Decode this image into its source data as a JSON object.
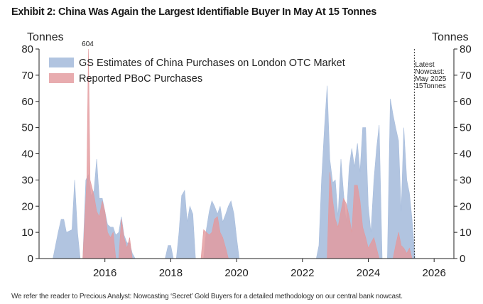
{
  "title": "Exhibit 2: China Was Again the Largest Identifiable Buyer In May At 15 Tonnes",
  "footnote": "We refer the reader to Precious Analyst: Nowcasting ‘Secret’ Gold Buyers for a detailed methodology on our central bank nowcast.",
  "chart_data": {
    "type": "area",
    "title": "",
    "ylabel_left": "Tonnes",
    "ylabel_right": "Tonnes",
    "ylim": [
      0,
      80
    ],
    "yticks": [
      0,
      10,
      20,
      30,
      40,
      50,
      60,
      70,
      80
    ],
    "xlim": [
      2014.0,
      2026.6
    ],
    "xticks": [
      2016,
      2018,
      2020,
      2022,
      2024,
      2026
    ],
    "grid": false,
    "legend_position": "top-left",
    "series": [
      {
        "name": "GS Estimates of China Purchases on London OTC Market",
        "color": "#a9bedd",
        "points": [
          [
            2014.42,
            0
          ],
          [
            2014.58,
            10
          ],
          [
            2014.67,
            15
          ],
          [
            2014.75,
            15
          ],
          [
            2014.83,
            10
          ],
          [
            2015.0,
            11
          ],
          [
            2015.08,
            30
          ],
          [
            2015.17,
            10
          ],
          [
            2015.25,
            0
          ],
          [
            2015.33,
            0
          ],
          [
            2015.42,
            30
          ],
          [
            2015.5,
            32
          ],
          [
            2015.58,
            24
          ],
          [
            2015.67,
            26
          ],
          [
            2015.75,
            38
          ],
          [
            2015.83,
            23
          ],
          [
            2015.92,
            23
          ],
          [
            2016.0,
            18
          ],
          [
            2016.08,
            13
          ],
          [
            2016.17,
            12
          ],
          [
            2016.25,
            12
          ],
          [
            2016.33,
            9
          ],
          [
            2016.42,
            10
          ],
          [
            2016.5,
            16
          ],
          [
            2016.58,
            9
          ],
          [
            2016.67,
            6
          ],
          [
            2016.75,
            6
          ],
          [
            2016.83,
            2
          ],
          [
            2016.92,
            0
          ],
          [
            2017.83,
            0
          ],
          [
            2017.92,
            5
          ],
          [
            2018.0,
            5
          ],
          [
            2018.08,
            0
          ],
          [
            2018.17,
            0
          ],
          [
            2018.25,
            10
          ],
          [
            2018.33,
            24
          ],
          [
            2018.42,
            26
          ],
          [
            2018.5,
            14
          ],
          [
            2018.58,
            20
          ],
          [
            2018.67,
            17
          ],
          [
            2018.75,
            0
          ],
          [
            2019.0,
            0
          ],
          [
            2019.08,
            11
          ],
          [
            2019.17,
            18
          ],
          [
            2019.25,
            22
          ],
          [
            2019.33,
            20
          ],
          [
            2019.42,
            17
          ],
          [
            2019.5,
            20
          ],
          [
            2019.58,
            14
          ],
          [
            2019.67,
            17
          ],
          [
            2019.75,
            20
          ],
          [
            2019.83,
            22
          ],
          [
            2019.92,
            17
          ],
          [
            2020.0,
            8
          ],
          [
            2020.08,
            0
          ],
          [
            2022.42,
            0
          ],
          [
            2022.5,
            5
          ],
          [
            2022.58,
            30
          ],
          [
            2022.67,
            50
          ],
          [
            2022.75,
            66
          ],
          [
            2022.83,
            38
          ],
          [
            2022.92,
            29
          ],
          [
            2023.0,
            30
          ],
          [
            2023.08,
            16
          ],
          [
            2023.17,
            38
          ],
          [
            2023.25,
            25
          ],
          [
            2023.33,
            14
          ],
          [
            2023.42,
            35
          ],
          [
            2023.5,
            42
          ],
          [
            2023.58,
            35
          ],
          [
            2023.67,
            44
          ],
          [
            2023.75,
            33
          ],
          [
            2023.83,
            50
          ],
          [
            2023.92,
            50
          ],
          [
            2024.0,
            20
          ],
          [
            2024.08,
            10
          ],
          [
            2024.17,
            30
          ],
          [
            2024.25,
            42
          ],
          [
            2024.33,
            51
          ],
          [
            2024.42,
            0
          ],
          [
            2024.58,
            0
          ],
          [
            2024.67,
            61
          ],
          [
            2024.75,
            55
          ],
          [
            2024.83,
            50
          ],
          [
            2024.92,
            45
          ],
          [
            2025.0,
            18
          ],
          [
            2025.08,
            50
          ],
          [
            2025.17,
            30
          ],
          [
            2025.25,
            25
          ],
          [
            2025.33,
            15
          ],
          [
            2025.42,
            0
          ]
        ]
      },
      {
        "name": "Reported PBoC Purchases",
        "color": "#e39a9d",
        "points": [
          [
            2015.33,
            0
          ],
          [
            2015.45,
            30
          ],
          [
            2015.5,
            80
          ],
          [
            2015.55,
            30
          ],
          [
            2015.67,
            24
          ],
          [
            2015.75,
            18
          ],
          [
            2015.83,
            16
          ],
          [
            2015.92,
            22
          ],
          [
            2016.0,
            18
          ],
          [
            2016.08,
            10
          ],
          [
            2016.17,
            8
          ],
          [
            2016.25,
            10
          ],
          [
            2016.33,
            0
          ],
          [
            2016.42,
            0
          ],
          [
            2016.5,
            15
          ],
          [
            2016.58,
            8
          ],
          [
            2016.67,
            4
          ],
          [
            2016.75,
            8
          ],
          [
            2016.83,
            0
          ],
          [
            2018.92,
            0
          ],
          [
            2019.0,
            11
          ],
          [
            2019.08,
            10
          ],
          [
            2019.17,
            9
          ],
          [
            2019.25,
            10
          ],
          [
            2019.33,
            15
          ],
          [
            2019.42,
            16
          ],
          [
            2019.5,
            10
          ],
          [
            2019.58,
            8
          ],
          [
            2019.67,
            4
          ],
          [
            2019.75,
            0
          ],
          [
            2022.75,
            0
          ],
          [
            2022.83,
            33
          ],
          [
            2022.92,
            22
          ],
          [
            2023.0,
            15
          ],
          [
            2023.08,
            12
          ],
          [
            2023.17,
            18
          ],
          [
            2023.25,
            23
          ],
          [
            2023.33,
            21
          ],
          [
            2023.42,
            16
          ],
          [
            2023.5,
            10
          ],
          [
            2023.58,
            28
          ],
          [
            2023.67,
            28
          ],
          [
            2023.75,
            22
          ],
          [
            2023.83,
            12
          ],
          [
            2023.92,
            8
          ],
          [
            2024.0,
            4
          ],
          [
            2024.08,
            6
          ],
          [
            2024.17,
            8
          ],
          [
            2024.25,
            4
          ],
          [
            2024.33,
            0
          ],
          [
            2024.75,
            0
          ],
          [
            2024.83,
            5
          ],
          [
            2024.92,
            10
          ],
          [
            2025.0,
            5
          ],
          [
            2025.08,
            4
          ],
          [
            2025.17,
            2
          ],
          [
            2025.25,
            4
          ],
          [
            2025.33,
            0
          ]
        ]
      }
    ],
    "annotations": {
      "peak_label": "604",
      "peak_x": 2015.5,
      "nowcast_x": 2025.4,
      "nowcast_lines": [
        "Latest",
        "Nowcast:",
        "May 2025",
        "15Tonnes"
      ]
    }
  }
}
